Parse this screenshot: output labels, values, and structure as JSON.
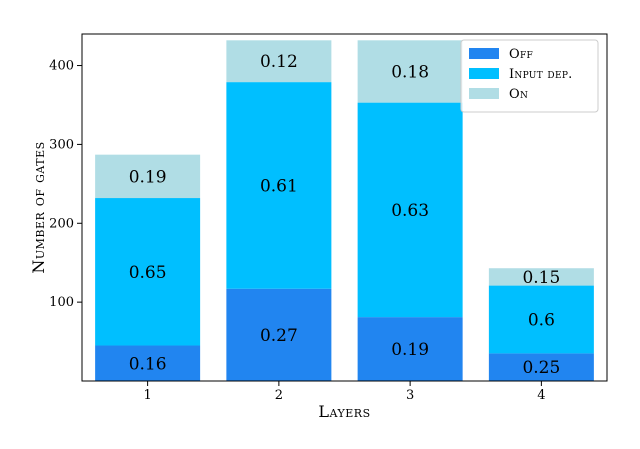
{
  "chart_data": {
    "type": "bar",
    "stacked": true,
    "categories": [
      "1",
      "2",
      "3",
      "4"
    ],
    "series": [
      {
        "name": "Off",
        "color": "#2185f0",
        "values": [
          45,
          117,
          81,
          35
        ],
        "labels": [
          "0.16",
          "0.27",
          "0.19",
          "0.25"
        ]
      },
      {
        "name": "Input dep.",
        "color": "#00bfff",
        "values": [
          187,
          262,
          272,
          86
        ],
        "labels": [
          "0.65",
          "0.61",
          "0.63",
          "0.6"
        ]
      },
      {
        "name": "On",
        "color": "#b0dde5",
        "values": [
          55,
          53,
          79,
          22
        ],
        "labels": [
          "0.19",
          "0.12",
          "0.18",
          "0.15"
        ]
      }
    ],
    "title": "",
    "xlabel": "Layers",
    "ylabel": "Number of gates",
    "ylim": [
      0,
      440
    ],
    "yticks": [
      100,
      200,
      300,
      400
    ],
    "grid": false,
    "legend_position": "top-right"
  }
}
